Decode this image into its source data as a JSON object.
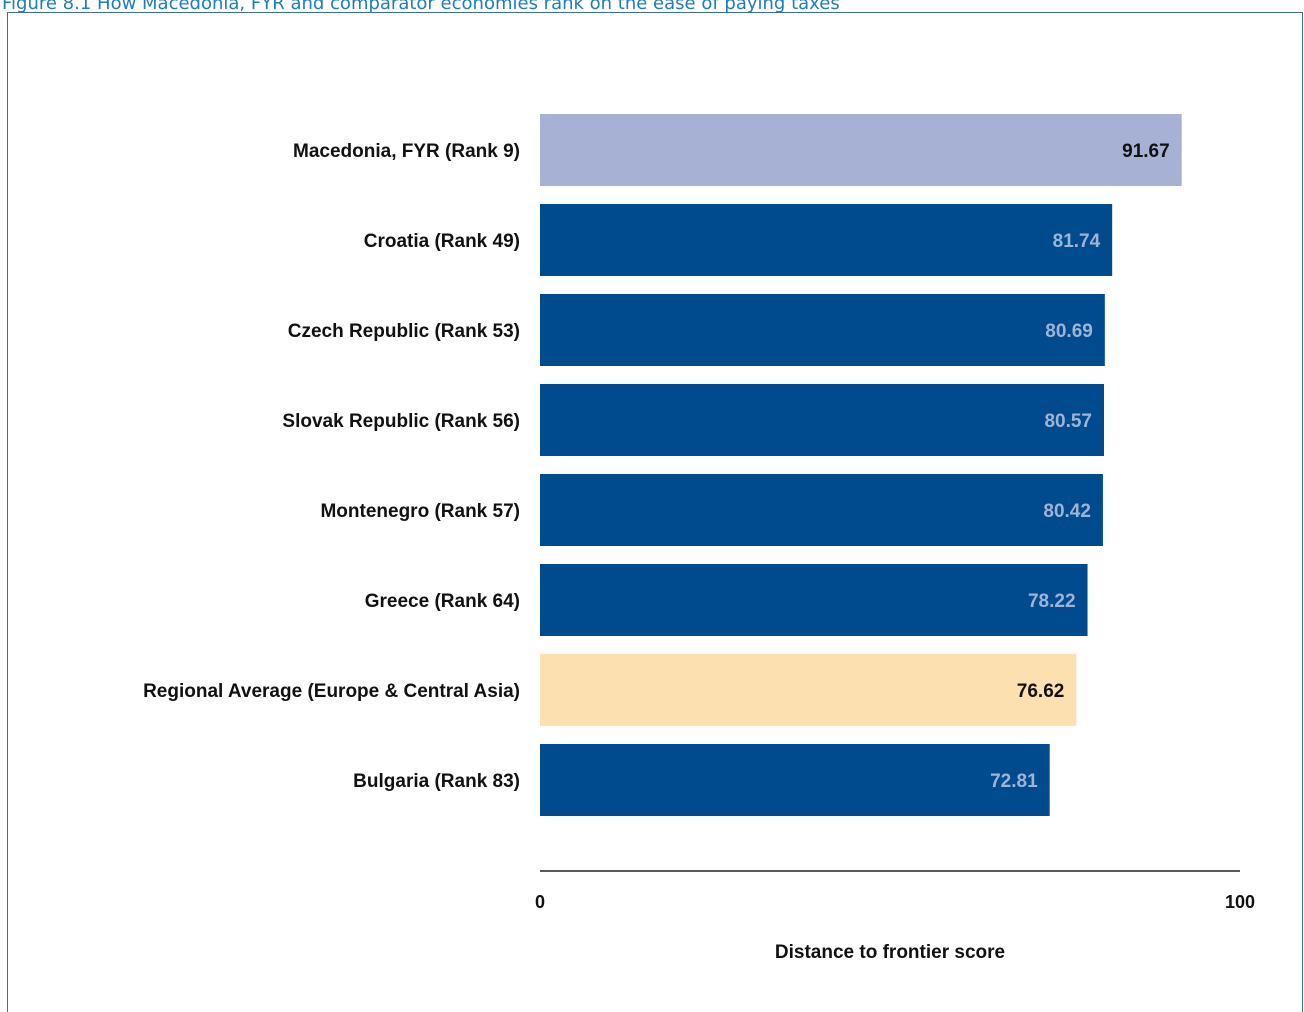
{
  "figure": {
    "title": "Figure 8.1 How Macedonia, FYR and comparator economies rank on the ease of paying taxes"
  },
  "colors": {
    "focus_bar": "#a7b1d4",
    "comparator_bar": "#004b8d",
    "regional_bar": "#fde0b0",
    "light_value_text": "#9fb3d6",
    "dark_value_text": "#111111",
    "frame": "#3f6d98",
    "title": "#1f7bbf"
  },
  "chart_data": {
    "type": "bar",
    "orientation": "horizontal",
    "categories": [
      "Macedonia, FYR (Rank 9)",
      "Croatia (Rank 49)",
      "Czech Republic (Rank 53)",
      "Slovak Republic (Rank 56)",
      "Montenegro (Rank 57)",
      "Greece (Rank 64)",
      "Regional Average (Europe & Central Asia)",
      "Bulgaria (Rank 83)"
    ],
    "values": [
      91.67,
      81.74,
      80.69,
      80.57,
      80.42,
      78.22,
      76.62,
      72.81
    ],
    "value_labels": [
      "91.67",
      "81.74",
      "80.69",
      "80.57",
      "80.42",
      "78.22",
      "76.62",
      "72.81"
    ],
    "bar_roles": [
      "focus",
      "comparator",
      "comparator",
      "comparator",
      "comparator",
      "comparator",
      "regional",
      "comparator"
    ],
    "xlim": [
      0,
      100
    ],
    "x_ticks": [
      0,
      100
    ],
    "x_tick_labels": [
      "0",
      "100"
    ],
    "xlabel": "Distance to frontier score",
    "ylabel": "",
    "grid": false,
    "legend": "none"
  }
}
